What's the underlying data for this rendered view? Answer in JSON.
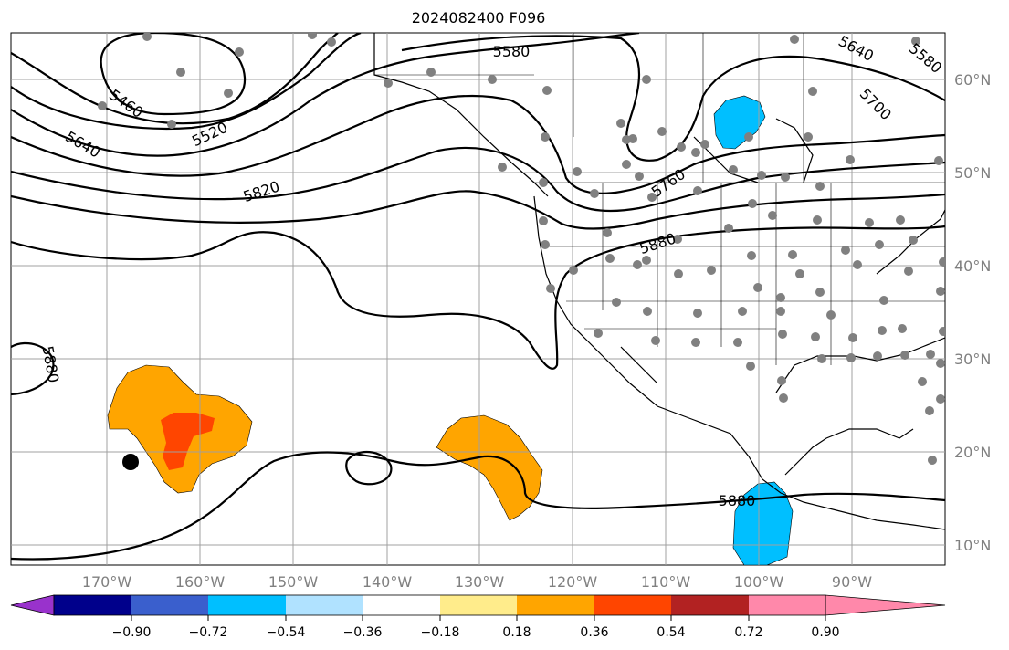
{
  "title": "2024082400 F096",
  "lat_labels": [
    "60°N",
    "50°N",
    "40°N",
    "30°N",
    "20°N",
    "10°N"
  ],
  "lon_labels": [
    "170°W",
    "160°W",
    "150°W",
    "140°W",
    "130°W",
    "120°W",
    "110°W",
    "100°W",
    "90°W"
  ],
  "contour_labels": [
    "5580",
    "5640",
    "5580",
    "5700",
    "5460",
    "5520",
    "5640",
    "5760",
    "5820",
    "5880",
    "5880",
    "5880"
  ],
  "colorbar": {
    "tick_labels": [
      "−0.90",
      "−0.72",
      "−0.54",
      "−0.36",
      "−0.18",
      "0.18",
      "0.36",
      "0.54",
      "0.72",
      "0.90"
    ],
    "colors": [
      "#9932cc",
      "#00008b",
      "#3a5fcd",
      "#00bfff",
      "#b0e2ff",
      "#ffffff",
      "#ffec8b",
      "#ffa500",
      "#ff4500",
      "#b22222",
      "#ff88aa"
    ]
  },
  "colors": {
    "grid": "#a0a0a0",
    "axis_label": "#808080",
    "station_dot": "#808080",
    "land_line": "#000000"
  }
}
